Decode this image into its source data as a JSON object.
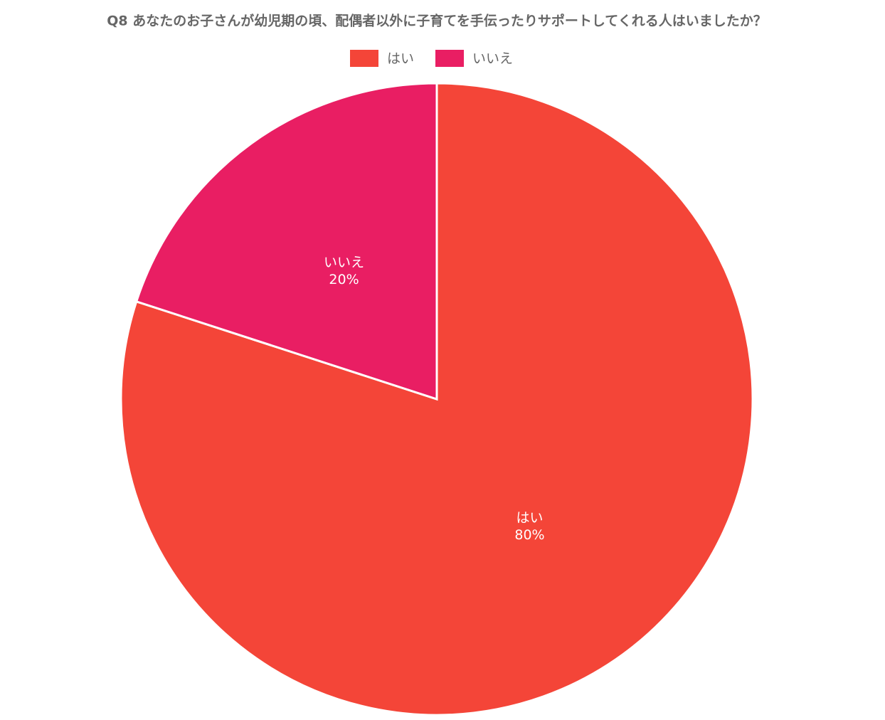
{
  "chart_data": {
    "type": "pie",
    "title": "Q8 あなたのお子さんが幼児期の頃、配偶者以外に子育てを手伝ったりサポートしてくれる人はいましたか？",
    "categories": [
      "はい",
      "いいえ"
    ],
    "values": [
      80,
      20
    ],
    "value_labels": [
      "80%",
      "20%"
    ],
    "colors": [
      "#f44538",
      "#e91e63"
    ],
    "legend": "top"
  }
}
